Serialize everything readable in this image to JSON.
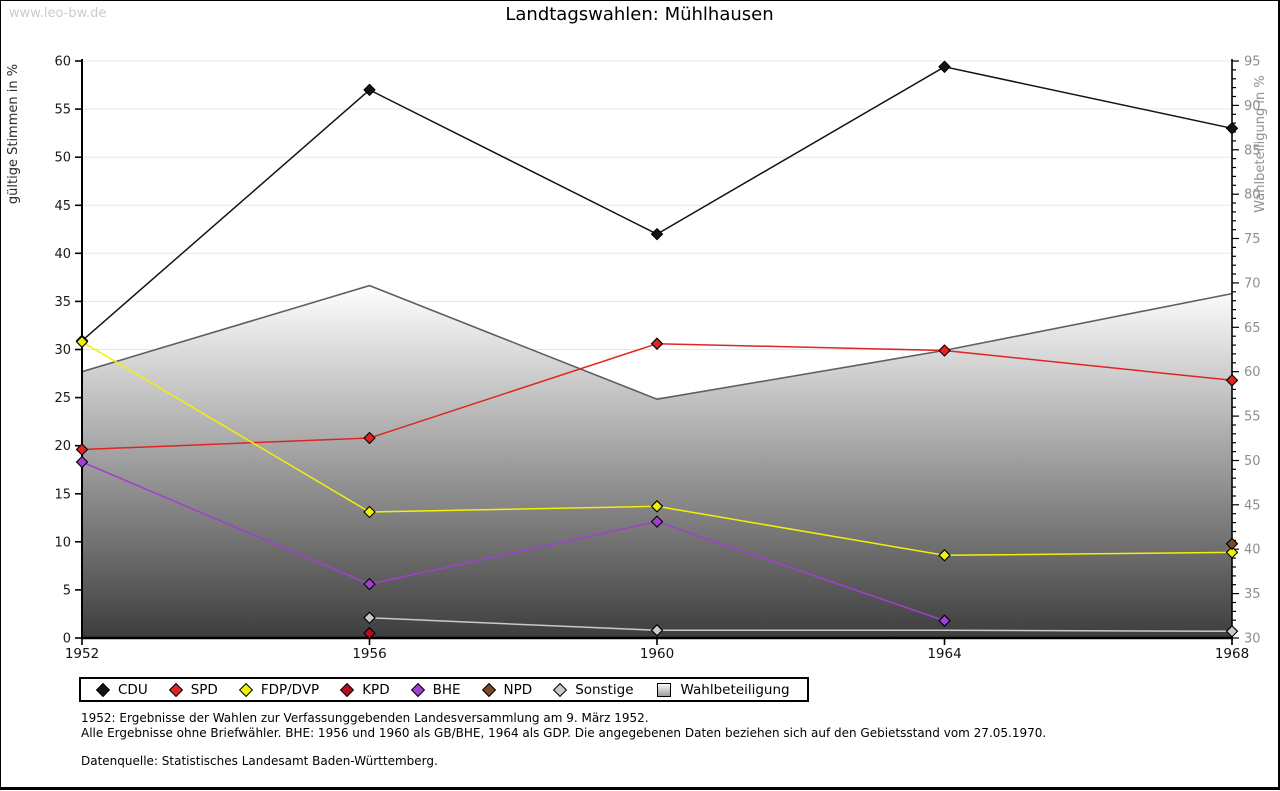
{
  "watermark": "www.leo-bw.de",
  "notes": [
    "1952: Ergebnisse der Wahlen zur Verfassunggebenden Landesversammlung am 9. März 1952.",
    "Alle Ergebnisse ohne Briefwähler. BHE: 1956 und 1960 als GB/BHE, 1964 als GDP. Die angegebenen Daten beziehen sich auf den Gebietsstand vom 27.05.1970.",
    "Datenquelle: Statistisches Landesamt Baden-Württemberg."
  ],
  "chart_data": {
    "type": "line",
    "title": "Landtagswahlen: Mühlhausen",
    "x_categories": [
      1952,
      1956,
      1960,
      1964,
      1968
    ],
    "axis_left": {
      "label": "gültige Stimmen in %",
      "min": 0,
      "max": 60,
      "tick_step": 5,
      "tick_color": "#1a1a1a"
    },
    "axis_right": {
      "label": "Wahlbeteiligung in %",
      "min": 30,
      "max": 95,
      "tick_step": 5,
      "minor_step": 1,
      "tick_color": "#8e8e8e"
    },
    "grid": "horizontal-left-ticks",
    "legend_position": "bottom",
    "series": [
      {
        "name": "CDU",
        "color": "#141414",
        "points": {
          "1952": 30.9,
          "1956": 57.0,
          "1960": 42.0,
          "1964": 59.4,
          "1968": 53.0
        }
      },
      {
        "name": "SPD",
        "color": "#e02424",
        "points": {
          "1952": 19.6,
          "1956": 20.8,
          "1960": 30.6,
          "1964": 29.9,
          "1968": 26.8
        }
      },
      {
        "name": "FDP/DVP",
        "color": "#f0f00a",
        "points": {
          "1952": 30.8,
          "1956": 13.1,
          "1960": 13.7,
          "1964": 8.6,
          "1968": 8.9
        }
      },
      {
        "name": "KPD",
        "color": "#b30e1e",
        "points": {
          "1956": 0.5
        }
      },
      {
        "name": "BHE",
        "color": "#a040d0",
        "points": {
          "1952": 18.3,
          "1956": 5.6,
          "1960": 12.1,
          "1964": 1.8
        }
      },
      {
        "name": "NPD",
        "color": "#7a4a28",
        "points": {
          "1968": 9.8
        }
      },
      {
        "name": "Sonstige",
        "color": "#c9c9c9",
        "points": {
          "1956": 2.1,
          "1960": 0.8,
          "1964": 0.8,
          "1968": 0.7
        },
        "skip_markers": [
          "1964"
        ]
      }
    ],
    "turnout_area": {
      "name": "Wahlbeteiligung",
      "axis": "right",
      "values": {
        "1952": 60.0,
        "1956": 69.7,
        "1960": 56.9,
        "1964": 62.4,
        "1968": 68.8
      },
      "edge_color": "#5f5f5f",
      "fill_gradient": [
        "#ffffff",
        "#3d3d3d"
      ]
    }
  }
}
